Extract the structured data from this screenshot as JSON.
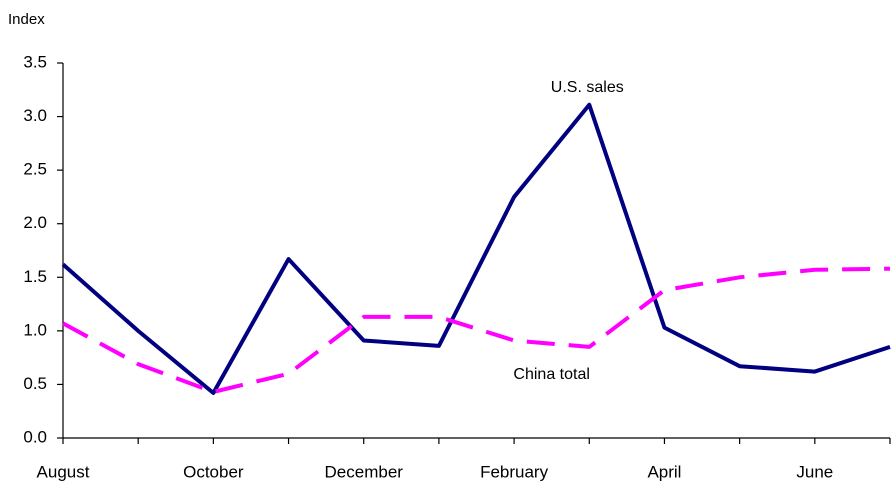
{
  "chart_data": {
    "type": "line",
    "ylabel": "Index",
    "categories": [
      "August",
      null,
      "October",
      null,
      "December",
      null,
      "February",
      null,
      "April",
      null,
      "June",
      null
    ],
    "series": [
      {
        "name": "U.S. sales",
        "color": "#000080",
        "style": "solid",
        "values": [
          1.62,
          1.0,
          0.42,
          1.67,
          0.91,
          0.86,
          2.25,
          3.11,
          1.03,
          0.67,
          0.62,
          0.85
        ]
      },
      {
        "name": "China total",
        "color": "#ff00ff",
        "style": "dashed",
        "values": [
          1.07,
          0.69,
          0.43,
          0.6,
          1.13,
          1.13,
          0.91,
          0.85,
          1.38,
          1.5,
          1.57,
          1.58
        ]
      }
    ],
    "ylim": [
      0,
      3.5
    ],
    "yticks": [
      {
        "value": 0,
        "label": "0.0"
      },
      0.5,
      {
        "value": 1,
        "label": "1.0"
      },
      1.5,
      {
        "value": 2,
        "label": "2.0"
      },
      2.5,
      {
        "value": 3,
        "label": "3.0"
      },
      3.5
    ],
    "grid": false
  }
}
